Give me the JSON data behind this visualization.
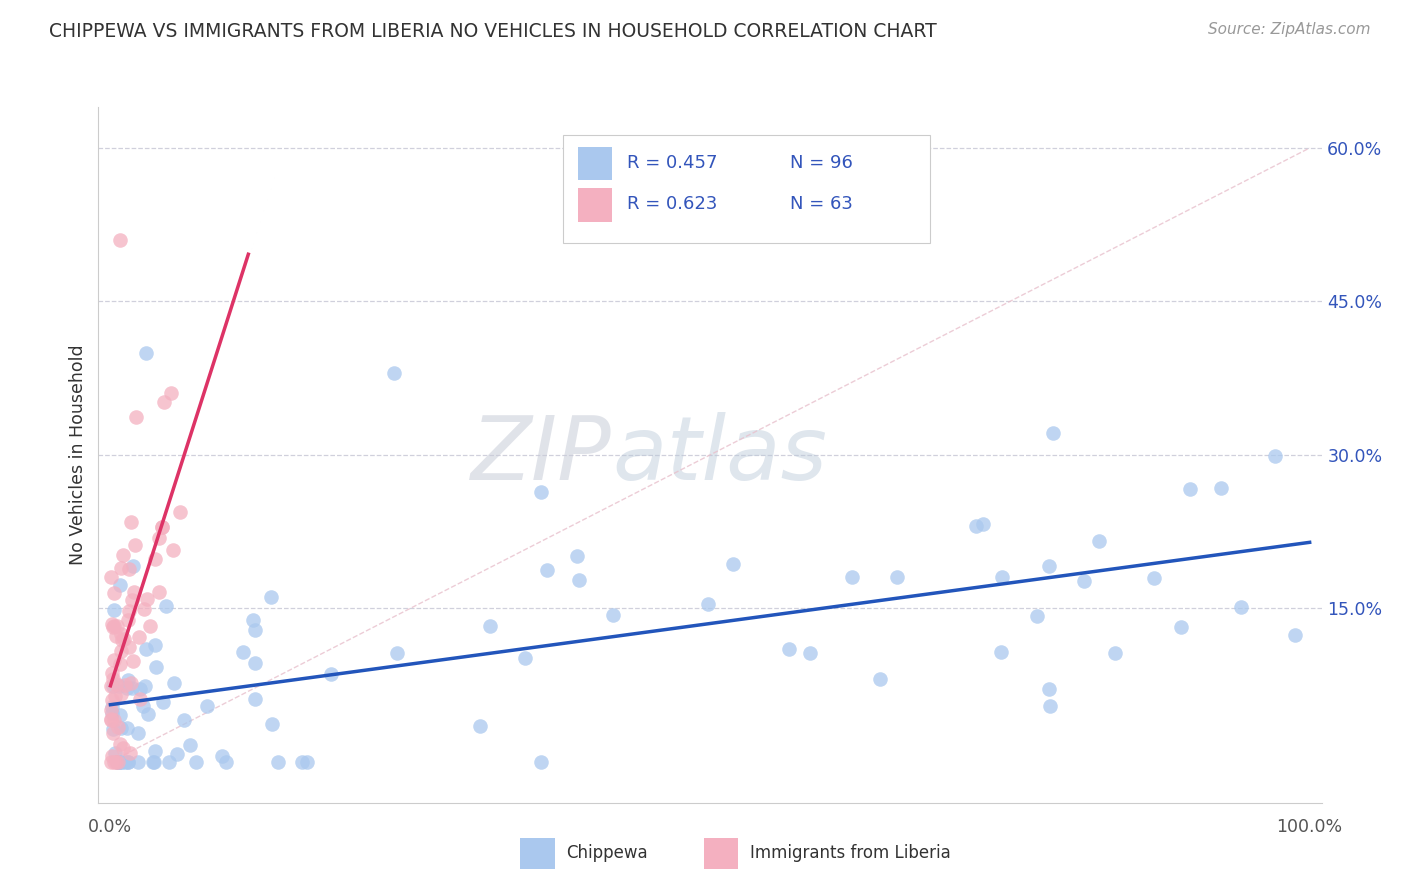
{
  "title": "CHIPPEWA VS IMMIGRANTS FROM LIBERIA NO VEHICLES IN HOUSEHOLD CORRELATION CHART",
  "source": "Source: ZipAtlas.com",
  "ylabel": "No Vehicles in Household",
  "legend_r1": "R = 0.457",
  "legend_n1": "N = 96",
  "legend_r2": "R = 0.623",
  "legend_n2": "N = 63",
  "chippewa_label": "Chippewa",
  "liberia_label": "Immigrants from Liberia",
  "chippewa_color": "#aac8ee",
  "liberia_color": "#f4b0c0",
  "chippewa_line_color": "#2255bb",
  "liberia_line_color": "#dd3366",
  "diag_color": "#e8c0cc",
  "watermark_zip": "#d0d4e8",
  "watermark_atlas": "#c8d8e8",
  "grid_color": "#d0d0dc",
  "background_color": "#ffffff",
  "tick_label_color": "#555555",
  "right_tick_color": "#3355bb",
  "legend_text_color": "#333333",
  "legend_rv_color": "#3355bb",
  "source_color": "#999999"
}
